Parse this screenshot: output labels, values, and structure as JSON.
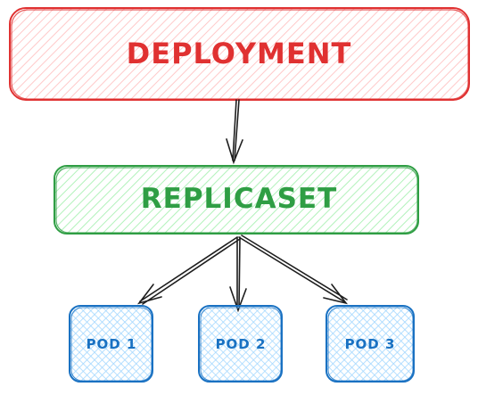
{
  "diagram": {
    "deployment": {
      "label": "DEPLOYMENT",
      "stroke": "#e03131",
      "fill": "#ffc9c9"
    },
    "replicaset": {
      "label": "REPLICASET",
      "stroke": "#2f9e44",
      "fill": "#b2f2bb"
    },
    "pods": [
      {
        "label": "POD 1"
      },
      {
        "label": "POD 2"
      },
      {
        "label": "POD 3"
      }
    ],
    "pod_style": {
      "stroke": "#1971c2",
      "fill": "#a5d8ff"
    },
    "edge_color": "#1e1e1e"
  }
}
